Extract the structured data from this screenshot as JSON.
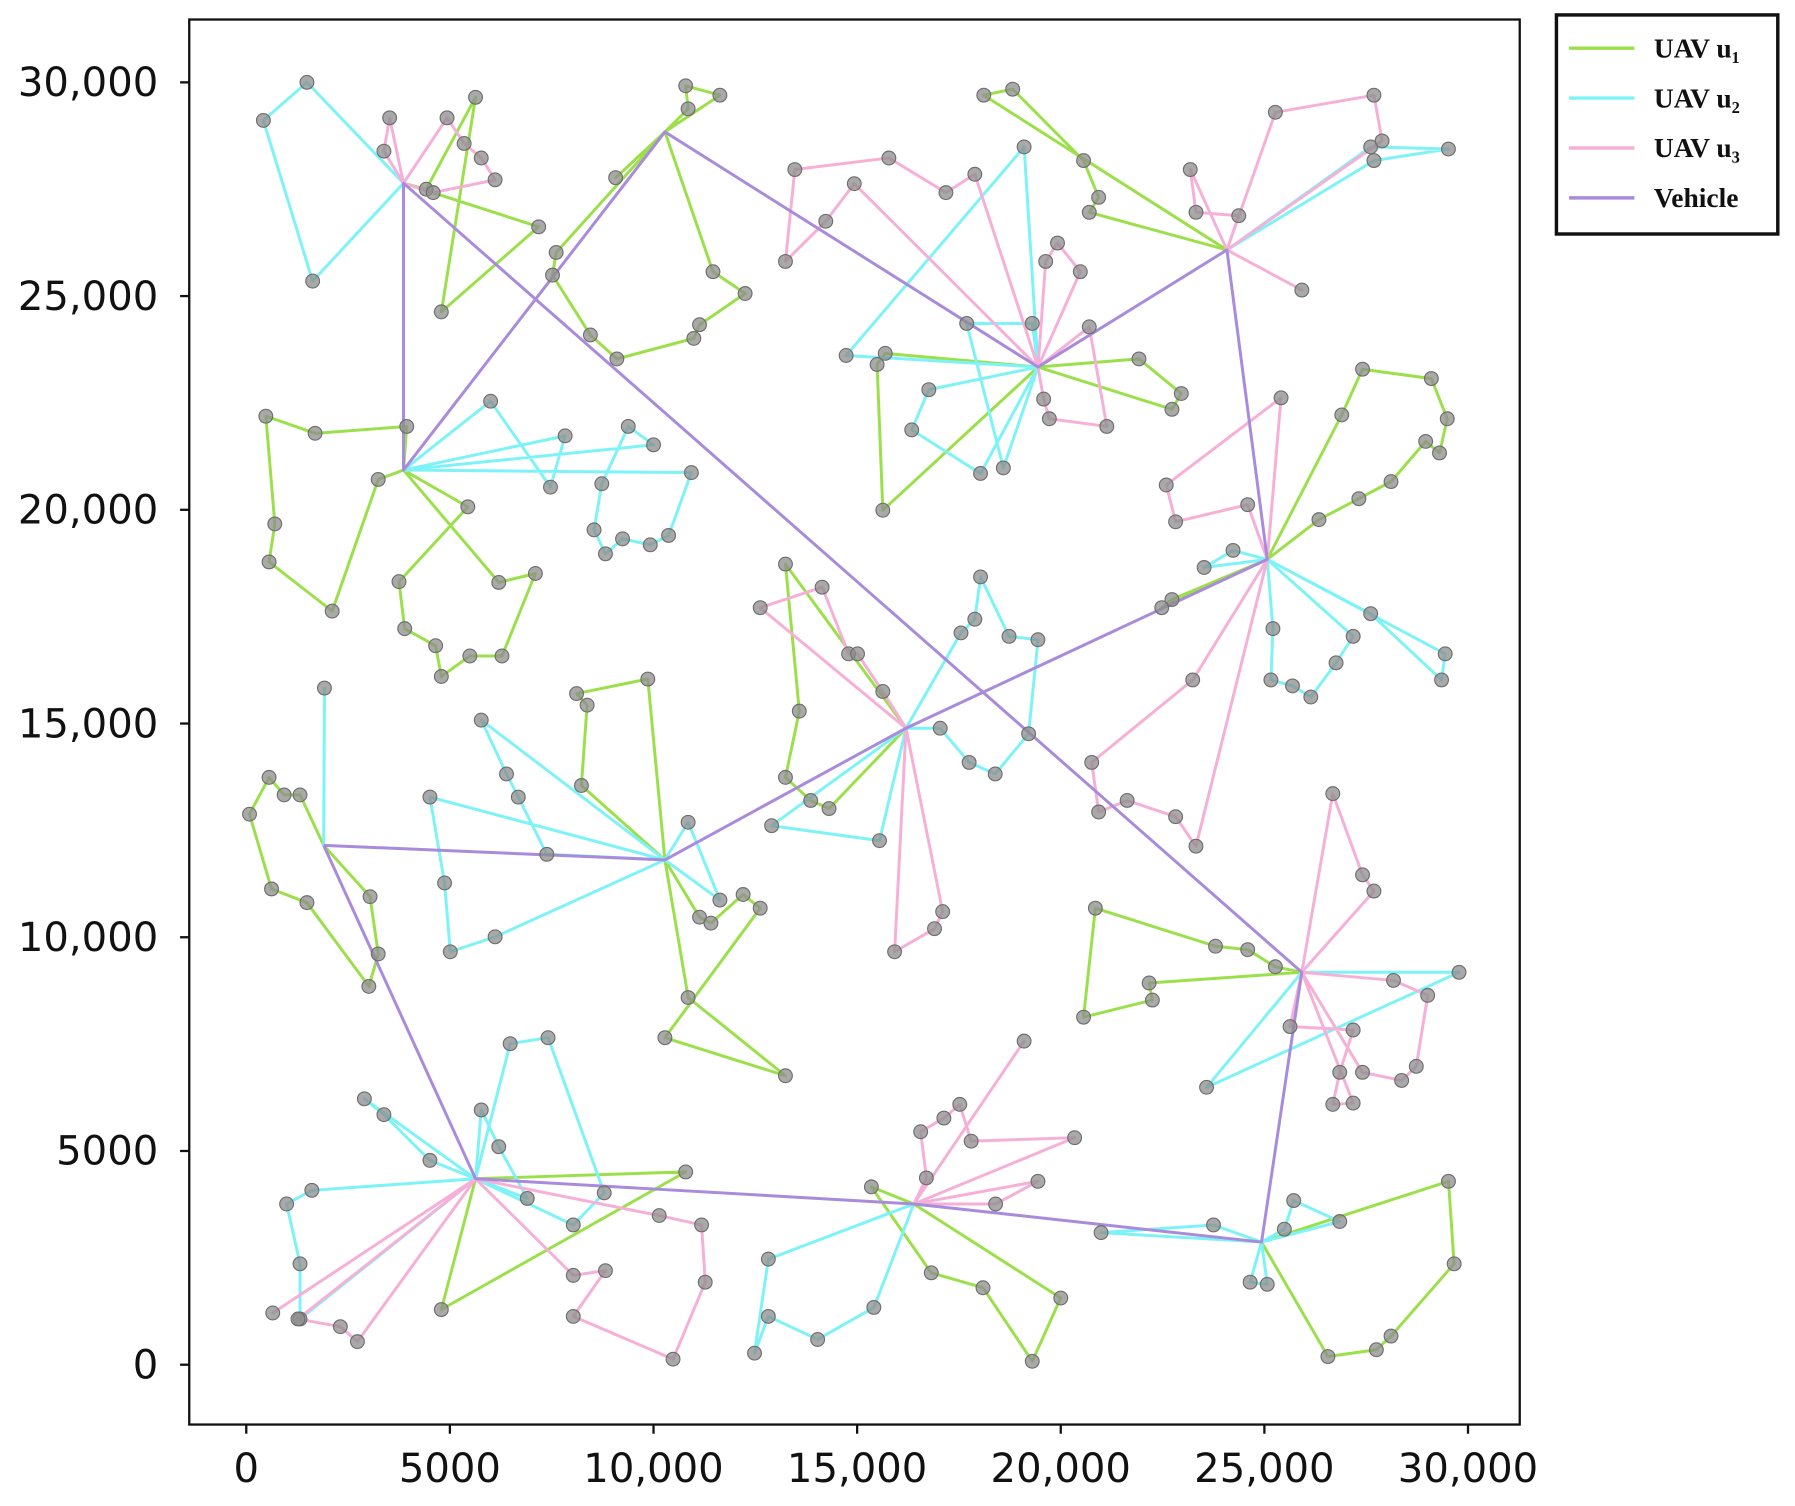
{
  "chart_data": {
    "type": "route",
    "xlim": [
      -1400,
      31270
    ],
    "ylim": [
      -1400,
      31470
    ],
    "xticks": [
      0,
      5000,
      {
        "value": 10000,
        "label": "10,000"
      },
      {
        "value": 15000,
        "label": "15,000"
      },
      {
        "value": 20000,
        "label": "20,000"
      },
      {
        "value": 25000,
        "label": "25,000"
      },
      {
        "value": 30000,
        "label": "30,000"
      }
    ],
    "yticks": [
      0,
      5000,
      {
        "value": 10000,
        "label": "10,000"
      },
      {
        "value": 15000,
        "label": "15,000"
      },
      {
        "value": 20000,
        "label": "20,000"
      },
      {
        "value": 25000,
        "label": "25,000"
      },
      {
        "value": 30000,
        "label": "30,000"
      }
    ],
    "legend": "right",
    "marker_color": "#8c8c8c",
    "series": [
      {
        "name": "UAV u₁",
        "color": "#9be04a",
        "x": [
          3860,
          7180,
          4790,
          5630,
          4420,
          3860,
          null,
          3860,
          3940,
          1690,
          480,
          700,
          560,
          2110,
          3240,
          3860,
          null,
          3860,
          5440,
          3750,
          3890,
          4650,
          4790,
          5490,
          6280,
          7100,
          6200,
          3860,
          null,
          10280,
          10850,
          10790,
          11630,
          10280,
          null,
          10280,
          11460,
          12250,
          11130,
          10990,
          9100,
          8450,
          7520,
          7610,
          10280,
          null,
          10280,
          9070,
          10280,
          null,
          19440,
          15630,
          15490,
          15690,
          19440,
          null,
          19440,
          21920,
          22960,
          22730,
          19440,
          null,
          24080,
          18110,
          18820,
          20560,
          20930,
          20700,
          24080,
          null,
          25070,
          26900,
          27410,
          29100,
          29490,
          29300,
          28960,
          28110,
          27320,
          26340,
          25070,
          null,
          25070,
          22730,
          22480,
          25070,
          null,
          16200,
          13240,
          13580,
          13240,
          13860,
          14310,
          16200,
          null,
          10280,
          9860,
          8110,
          8370,
          8230,
          10280,
          null,
          10280,
          11130,
          11410,
          12200,
          12620,
          10280,
          13240,
          10850,
          10280,
          null,
          1900,
          1320,
          930,
          560,
          80,
          620,
          1490,
          3010,
          3240,
          3040,
          1900,
          null,
          5630,
          10790,
          4790,
          5630,
          null,
          16390,
          15350,
          16820,
          18090,
          19300,
          20000,
          16390,
          null,
          24930,
          29520,
          29660,
          28110,
          27750,
          26560,
          24930,
          null,
          25920,
          25270,
          24590,
          23800,
          20850,
          20560,
          22250,
          22170,
          25920
        ],
        "values": [
          27640,
          26620,
          24630,
          29650,
          27500,
          27640,
          null,
          20930,
          21950,
          21790,
          22190,
          19670,
          18780,
          17630,
          20710,
          20930,
          null,
          20930,
          20070,
          18320,
          17220,
          16820,
          16100,
          16580,
          16580,
          18510,
          18300,
          20930,
          null,
          28840,
          29380,
          29920,
          29700,
          28840,
          null,
          28840,
          25570,
          25060,
          24330,
          24010,
          23530,
          24090,
          25490,
          26020,
          28840,
          null,
          28840,
          27770,
          28840,
          null,
          23340,
          19990,
          23400,
          23660,
          23340,
          null,
          23340,
          23530,
          22720,
          22350,
          23340,
          null,
          26080,
          29700,
          29840,
          28170,
          27310,
          26960,
          26080,
          null,
          18840,
          22220,
          23290,
          23070,
          22130,
          21330,
          21600,
          20660,
          20260,
          19770,
          18840,
          null,
          18840,
          17900,
          17710,
          18840,
          null,
          14890,
          18730,
          15290,
          13740,
          13200,
          13010,
          14890,
          null,
          11810,
          16040,
          15700,
          15430,
          13550,
          11810,
          null,
          11810,
          10470,
          10330,
          11000,
          10680,
          7650,
          6760,
          8590,
          11810,
          null,
          12150,
          13330,
          13330,
          13740,
          12880,
          11130,
          10810,
          8850,
          9610,
          10950,
          12150,
          null,
          4350,
          4510,
          1290,
          4350,
          null,
          3760,
          4160,
          2150,
          1800,
          80,
          1560,
          3760,
          null,
          2870,
          4290,
          2360,
          670,
          350,
          190,
          2870,
          null,
          9180,
          9310,
          9710,
          9790,
          10680,
          8130,
          8530,
          8930,
          9180
        ]
      },
      {
        "name": "UAV u₂",
        "color": "#7df3f7",
        "x": [
          3860,
          1630,
          420,
          1490,
          3860,
          null,
          3860,
          6000,
          7470,
          7830,
          3860,
          null,
          3860,
          10000,
          9380,
          8730,
          8540,
          8820,
          9240,
          9920,
          10370,
          10930,
          3860,
          null,
          19440,
          14730,
          19100,
          19440,
          null,
          19440,
          19300,
          17690,
          18590,
          19440,
          null,
          19440,
          16760,
          16340,
          18030,
          19440,
          null,
          24080,
          27610,
          29520,
          27690,
          24080,
          null,
          25070,
          24230,
          23520,
          25070,
          null,
          25070,
          29440,
          29350,
          27610,
          25070,
          null,
          25070,
          27180,
          26760,
          26140,
          25690,
          25160,
          25210,
          25070,
          null,
          16200,
          17550,
          17890,
          18030,
          18730,
          19440,
          19210,
          18390,
          17750,
          17040,
          16200,
          null,
          16200,
          15550,
          12900,
          16200,
          null,
          10280,
          4510,
          4870,
          5010,
          6110,
          10280,
          null,
          10280,
          5770,
          6390,
          6680,
          7380,
          10280,
          null,
          10280,
          10850,
          11630,
          10280,
          null,
          1900,
          1920,
          1900,
          null,
          5630,
          4510,
          3380,
          2900,
          5630,
          null,
          5630,
          1610,
          990,
          1320,
          1320,
          5630,
          null,
          5630,
          5770,
          6200,
          6900,
          5630,
          null,
          5630,
          6480,
          7410,
          8790,
          8030,
          5630,
          null,
          16390,
          12820,
          12480,
          12820,
          14030,
          15410,
          16390,
          null,
          24930,
          23750,
          20990,
          24930,
          null,
          24930,
          24650,
          25070,
          24930,
          null,
          24930,
          25490,
          25720,
          26850,
          24930,
          null,
          25920,
          29780,
          23580,
          25920
        ],
        "values": [
          27640,
          25350,
          29110,
          30000,
          27640,
          null,
          20930,
          22540,
          20530,
          21730,
          20930,
          null,
          20930,
          21520,
          21950,
          20610,
          19530,
          18970,
          19320,
          19180,
          19400,
          20870,
          20930,
          null,
          23340,
          23610,
          28490,
          23340,
          null,
          23340,
          24360,
          24360,
          20980,
          23340,
          null,
          23340,
          22810,
          21870,
          20850,
          23340,
          null,
          26080,
          28490,
          28440,
          28170,
          26080,
          null,
          18840,
          19050,
          18650,
          18840,
          null,
          18840,
          16630,
          16020,
          17570,
          18840,
          null,
          18840,
          17040,
          16420,
          15620,
          15880,
          16020,
          17220,
          18840,
          null,
          14890,
          17120,
          17440,
          18430,
          17040,
          16960,
          14760,
          13820,
          14090,
          14890,
          14890,
          null,
          14890,
          12260,
          12610,
          14890,
          null,
          11810,
          13280,
          11270,
          9660,
          10010,
          11810,
          null,
          11810,
          15080,
          13820,
          13280,
          11940,
          11810,
          null,
          11810,
          12690,
          10870,
          11810,
          null,
          12150,
          15830,
          12150,
          null,
          4350,
          4780,
          5850,
          6220,
          4350,
          null,
          4350,
          4080,
          3760,
          2360,
          1070,
          4350,
          null,
          4350,
          5960,
          5100,
          3890,
          4350,
          null,
          4350,
          7510,
          7650,
          4020,
          3270,
          4350,
          null,
          3760,
          2470,
          270,
          1130,
          590,
          1340,
          3760,
          null,
          2870,
          3270,
          3090,
          2870,
          null,
          2870,
          1930,
          1880,
          2870,
          null,
          2870,
          3170,
          3840,
          3350,
          2870,
          null,
          9180,
          9180,
          6490,
          9180
        ]
      },
      {
        "name": "UAV u₃",
        "color": "#f6b0d8",
        "x": [
          3860,
          3380,
          3520,
          3860,
          null,
          3860,
          4930,
          5350,
          5770,
          6110,
          4590,
          3860,
          null,
          19440,
          17890,
          17180,
          15780,
          13470,
          13240,
          14230,
          14930,
          19440,
          null,
          19440,
          19630,
          19920,
          20480,
          19440,
          null,
          19440,
          19580,
          19720,
          21130,
          20700,
          19440,
          null,
          24080,
          25270,
          27690,
          27890,
          24080,
          null,
          24080,
          23180,
          23320,
          24370,
          24080,
          null,
          24080,
          25920,
          24080,
          null,
          25070,
          24590,
          22820,
          22590,
          25410,
          25070,
          null,
          25070,
          23240,
          20760,
          20930,
          21630,
          22820,
          23320,
          25070,
          null,
          16200,
          12620,
          14140,
          14790,
          15010,
          15630,
          16200,
          null,
          16200,
          15920,
          16900,
          17100,
          16200,
          null,
          5630,
          650,
          5630,
          null,
          5630,
          1270,
          2310,
          2730,
          5630,
          null,
          5630,
          10140,
          11180,
          11270,
          10480,
          8030,
          8820,
          8030,
          5630,
          null,
          16390,
          16700,
          16560,
          17130,
          17520,
          17800,
          20340,
          16390,
          null,
          16390,
          18400,
          19440,
          16390,
          null,
          16390,
          19100,
          16390,
          null,
          25920,
          26680,
          27410,
          27690,
          25920,
          null,
          25920,
          28170,
          29010,
          28730,
          28370,
          27410,
          25920,
          null,
          25920,
          25630,
          27180,
          26850,
          26680,
          27180,
          25920
        ],
        "values": [
          27640,
          28390,
          29170,
          27640,
          null,
          27640,
          29170,
          28570,
          28230,
          27720,
          27420,
          27640,
          null,
          23340,
          27850,
          27420,
          28230,
          27960,
          25810,
          26750,
          27630,
          23340,
          null,
          23340,
          25810,
          26240,
          25570,
          23340,
          null,
          23340,
          22590,
          22130,
          21950,
          24280,
          23340,
          null,
          26080,
          29300,
          29700,
          28630,
          26080,
          null,
          26080,
          27960,
          26960,
          26880,
          26080,
          null,
          26080,
          25140,
          26080,
          null,
          18840,
          20120,
          19720,
          20580,
          22620,
          18840,
          null,
          18840,
          16020,
          14090,
          12930,
          13200,
          12820,
          12130,
          18840,
          null,
          14890,
          17710,
          18190,
          16630,
          16630,
          15750,
          14890,
          null,
          14890,
          9660,
          10200,
          10600,
          14890,
          null,
          4350,
          1210,
          4350,
          null,
          4350,
          1070,
          890,
          540,
          4350,
          null,
          4350,
          3490,
          3270,
          1930,
          130,
          1130,
          2200,
          2090,
          4350,
          null,
          3760,
          4370,
          5450,
          5770,
          6090,
          5230,
          5310,
          3760,
          null,
          3760,
          3760,
          4290,
          3760,
          null,
          3760,
          7570,
          3760,
          null,
          9180,
          13360,
          11460,
          11080,
          9180,
          null,
          9180,
          8990,
          8640,
          6980,
          6650,
          6840,
          9180,
          null,
          9180,
          7910,
          7830,
          6840,
          6090,
          6120,
          9180
        ]
      },
      {
        "name": "Vehicle",
        "color": "#a98bdc",
        "x": [
          1900,
          5630,
          16390,
          24930,
          25920,
          3860,
          3860,
          10280,
          19440,
          24080,
          25070,
          16200,
          10280,
          1900
        ],
        "values": [
          12150,
          4350,
          3760,
          2870,
          9180,
          27640,
          20930,
          28840,
          23340,
          26080,
          18840,
          14890,
          11810,
          12150
        ]
      }
    ]
  }
}
